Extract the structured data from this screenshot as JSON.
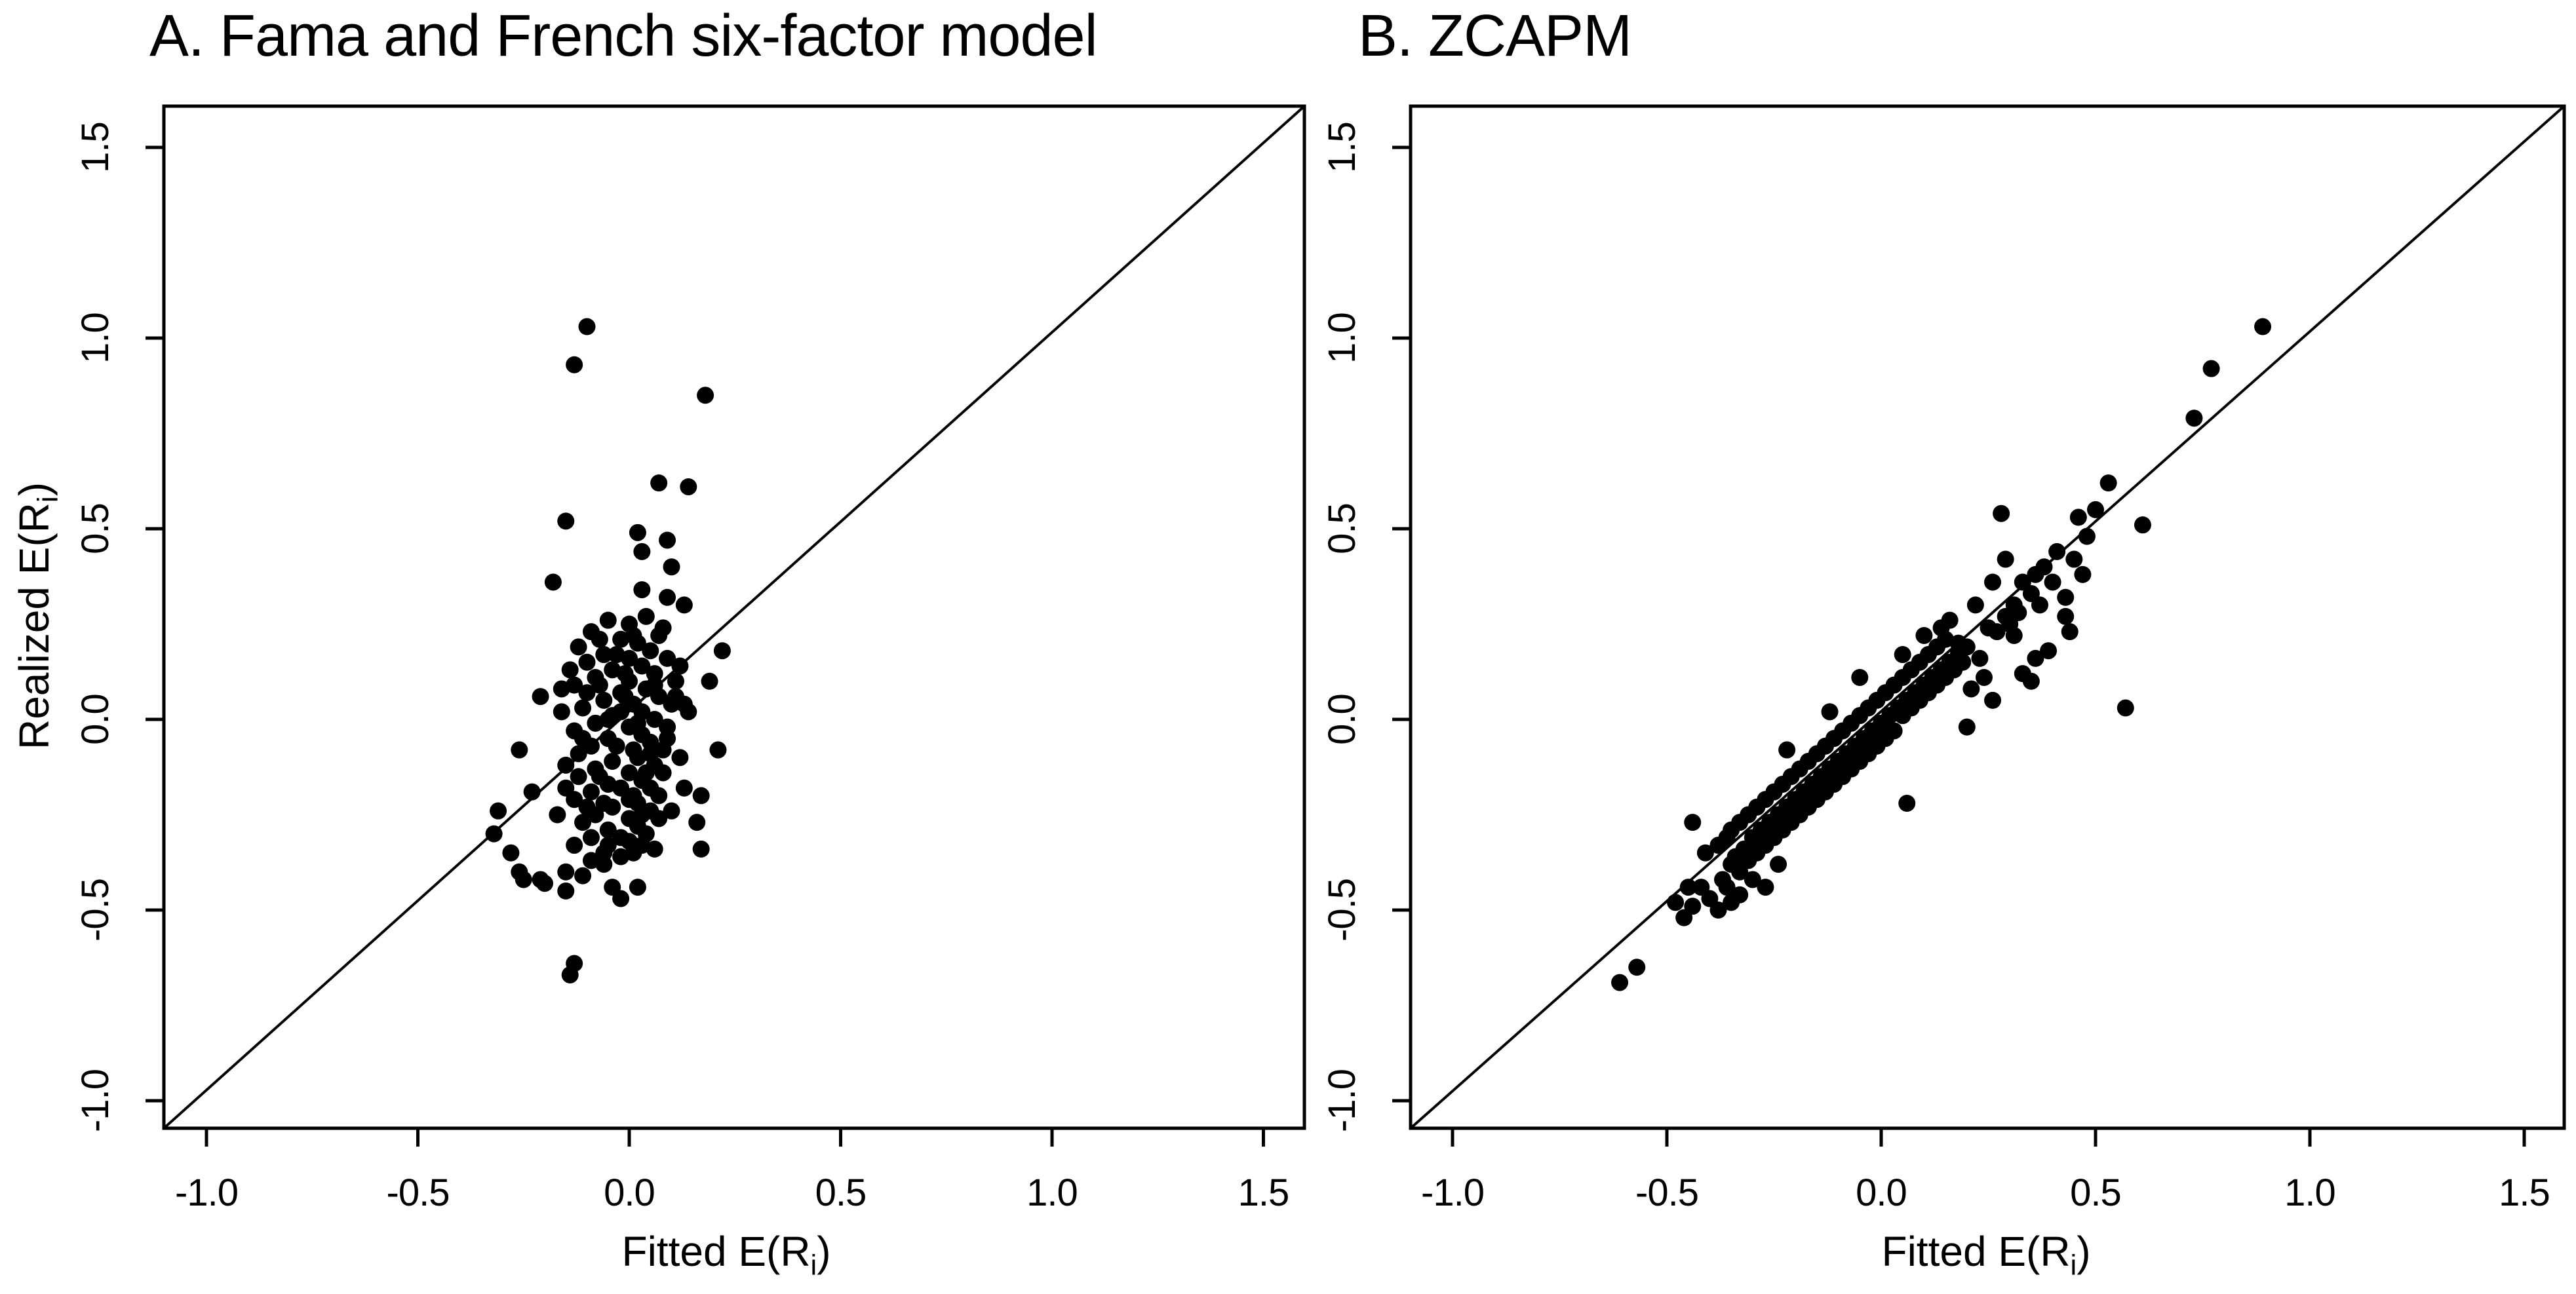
{
  "figure": {
    "background": "#ffffff",
    "ink_color": "#000000"
  },
  "panels": [
    {
      "id": "A",
      "title": "A. Fama and French six-factor model",
      "x_axis": {
        "label_pre": "Fitted E(R",
        "label_sub": "i",
        "label_post": ")"
      },
      "y_axis": {
        "label_pre": "Realized E(R",
        "label_sub": "i",
        "label_post": ")"
      }
    },
    {
      "id": "B",
      "title": "B. ZCAPM",
      "x_axis": {
        "label_pre": "Fitted E(R",
        "label_sub": "i",
        "label_post": ")"
      },
      "y_axis": {
        "label_pre": "",
        "label_sub": "",
        "label_post": ""
      }
    }
  ],
  "chart_data": [
    {
      "type": "scatter",
      "panel": "A",
      "title": "A. Fama and French six-factor model",
      "xlabel": "Fitted E(R_i)",
      "ylabel": "Realized E(R_i)",
      "xlim": [
        -1.1,
        1.6
      ],
      "ylim": [
        -1.07,
        1.61
      ],
      "grid": false,
      "legend": "none",
      "x_ticks": [
        -1.0,
        -0.5,
        0.0,
        0.5,
        1.0,
        1.5
      ],
      "y_ticks": [
        -1.0,
        -0.5,
        0.0,
        0.5,
        1.0,
        1.5
      ],
      "x_tick_labels": [
        "-1.0",
        "-0.5",
        "0.0",
        "0.5",
        "1.0",
        "1.5"
      ],
      "y_tick_labels": [
        "-1.0",
        "-0.5",
        "0.0",
        "0.5",
        "1.0",
        "1.5"
      ],
      "reference_line": {
        "type": "identity",
        "equation": "y = x"
      },
      "marker": {
        "shape": "circle",
        "color": "#000000",
        "radius_px": 13
      },
      "points": [
        [
          -0.1,
          1.03
        ],
        [
          -0.13,
          0.93
        ],
        [
          0.18,
          0.85
        ],
        [
          0.07,
          0.62
        ],
        [
          0.14,
          0.61
        ],
        [
          -0.15,
          0.52
        ],
        [
          0.02,
          0.49
        ],
        [
          0.09,
          0.47
        ],
        [
          0.03,
          0.44
        ],
        [
          0.1,
          0.4
        ],
        [
          -0.18,
          0.36
        ],
        [
          0.03,
          0.34
        ],
        [
          0.09,
          0.32
        ],
        [
          0.13,
          0.3
        ],
        [
          -0.21,
          0.06
        ],
        [
          -0.26,
          -0.08
        ],
        [
          -0.23,
          -0.19
        ],
        [
          -0.31,
          -0.24
        ],
        [
          -0.32,
          -0.3
        ],
        [
          -0.28,
          -0.35
        ],
        [
          -0.25,
          -0.42
        ],
        [
          -0.2,
          -0.43
        ],
        [
          -0.13,
          -0.64
        ],
        [
          -0.14,
          -0.67
        ],
        [
          -0.26,
          -0.4
        ],
        [
          -0.21,
          -0.42
        ],
        [
          -0.15,
          -0.4
        ],
        [
          -0.11,
          -0.41
        ],
        [
          -0.06,
          -0.38
        ],
        [
          -0.15,
          -0.45
        ],
        [
          0.06,
          -0.34
        ],
        [
          0.17,
          -0.34
        ],
        [
          -0.02,
          -0.47
        ],
        [
          0.02,
          -0.44
        ],
        [
          0.13,
          0.04
        ],
        [
          0.17,
          -0.2
        ],
        [
          0.21,
          -0.08
        ],
        [
          0.19,
          0.1
        ],
        [
          0.22,
          0.18
        ],
        [
          0.16,
          -0.27
        ],
        [
          -0.05,
          0.26
        ],
        [
          0.0,
          0.25
        ],
        [
          0.04,
          0.27
        ],
        [
          -0.09,
          0.23
        ],
        [
          0.07,
          0.22
        ],
        [
          -0.02,
          0.21
        ],
        [
          0.02,
          0.2
        ],
        [
          -0.12,
          0.19
        ],
        [
          0.05,
          0.18
        ],
        [
          -0.06,
          0.17
        ],
        [
          0.0,
          0.16
        ],
        [
          0.09,
          0.16
        ],
        [
          -0.1,
          0.15
        ],
        [
          0.03,
          0.14
        ],
        [
          -0.04,
          0.13
        ],
        [
          0.06,
          0.12
        ],
        [
          -0.08,
          0.11
        ],
        [
          0.0,
          0.1
        ],
        [
          0.11,
          0.1
        ],
        [
          -0.13,
          0.09
        ],
        [
          0.04,
          0.08
        ],
        [
          -0.02,
          0.07
        ],
        [
          0.07,
          0.06
        ],
        [
          -0.06,
          0.05
        ],
        [
          0.01,
          0.04
        ],
        [
          0.1,
          0.04
        ],
        [
          -0.11,
          0.03
        ],
        [
          0.03,
          0.02
        ],
        [
          -0.04,
          0.01
        ],
        [
          0.06,
          0.0
        ],
        [
          -0.08,
          -0.01
        ],
        [
          0.0,
          -0.02
        ],
        [
          0.09,
          -0.02
        ],
        [
          -0.13,
          -0.03
        ],
        [
          0.03,
          -0.04
        ],
        [
          -0.05,
          -0.05
        ],
        [
          0.05,
          -0.06
        ],
        [
          -0.09,
          -0.07
        ],
        [
          0.01,
          -0.08
        ],
        [
          0.08,
          -0.08
        ],
        [
          -0.12,
          -0.09
        ],
        [
          0.02,
          -0.1
        ],
        [
          -0.04,
          -0.11
        ],
        [
          0.06,
          -0.12
        ],
        [
          -0.08,
          -0.13
        ],
        [
          0.0,
          -0.14
        ],
        [
          0.08,
          -0.14
        ],
        [
          -0.12,
          -0.15
        ],
        [
          0.03,
          -0.16
        ],
        [
          -0.05,
          -0.17
        ],
        [
          0.05,
          -0.18
        ],
        [
          -0.09,
          -0.19
        ],
        [
          0.01,
          -0.2
        ],
        [
          0.07,
          -0.2
        ],
        [
          -0.13,
          -0.21
        ],
        [
          0.02,
          -0.22
        ],
        [
          -0.04,
          -0.23
        ],
        [
          0.05,
          -0.24
        ],
        [
          -0.08,
          -0.25
        ],
        [
          0.0,
          -0.26
        ],
        [
          0.07,
          -0.26
        ],
        [
          -0.11,
          -0.27
        ],
        [
          0.02,
          -0.28
        ],
        [
          -0.05,
          -0.29
        ],
        [
          0.04,
          -0.3
        ],
        [
          -0.09,
          -0.31
        ],
        [
          0.0,
          -0.32
        ],
        [
          -0.13,
          -0.33
        ],
        [
          0.03,
          -0.33
        ],
        [
          -0.06,
          -0.35
        ],
        [
          -0.02,
          -0.36
        ],
        [
          -0.16,
          0.02
        ],
        [
          -0.15,
          -0.12
        ],
        [
          -0.17,
          -0.25
        ],
        [
          -0.1,
          0.07
        ],
        [
          -0.07,
          0.09
        ],
        [
          0.12,
          0.14
        ],
        [
          0.14,
          0.02
        ],
        [
          0.12,
          -0.1
        ],
        [
          0.1,
          -0.24
        ],
        [
          0.13,
          -0.18
        ],
        [
          -0.01,
          0.12
        ],
        [
          -0.03,
          0.17
        ],
        [
          0.01,
          0.22
        ],
        [
          0.08,
          0.24
        ],
        [
          -0.07,
          0.21
        ],
        [
          -0.14,
          0.13
        ],
        [
          -0.16,
          0.08
        ],
        [
          -0.11,
          -0.05
        ],
        [
          -0.15,
          -0.18
        ],
        [
          -0.06,
          -0.22
        ],
        [
          -0.02,
          -0.18
        ],
        [
          0.04,
          -0.14
        ],
        [
          0.09,
          -0.05
        ],
        [
          0.11,
          0.06
        ],
        [
          0.06,
          0.09
        ],
        [
          -0.01,
          0.06
        ],
        [
          -0.05,
          0.0
        ],
        [
          0.02,
          -0.01
        ],
        [
          -0.03,
          -0.07
        ],
        [
          0.05,
          -0.09
        ],
        [
          -0.07,
          -0.15
        ],
        [
          0.0,
          -0.21
        ],
        [
          -0.1,
          -0.23
        ],
        [
          0.03,
          -0.25
        ],
        [
          -0.02,
          -0.31
        ],
        [
          -0.05,
          -0.33
        ],
        [
          0.01,
          -0.35
        ],
        [
          -0.09,
          -0.37
        ],
        [
          -0.04,
          -0.44
        ],
        [
          -0.02,
          0.02
        ]
      ]
    },
    {
      "type": "scatter",
      "panel": "B",
      "title": "B. ZCAPM",
      "xlabel": "Fitted E(R_i)",
      "ylabel": "Realized E(R_i)",
      "xlim": [
        -1.1,
        1.6
      ],
      "ylim": [
        -1.07,
        1.61
      ],
      "grid": false,
      "legend": "none",
      "x_ticks": [
        -1.0,
        -0.5,
        0.0,
        0.5,
        1.0,
        1.5
      ],
      "y_ticks": [
        -1.0,
        -0.5,
        0.0,
        0.5,
        1.0,
        1.5
      ],
      "x_tick_labels": [
        "-1.0",
        "-0.5",
        "0.0",
        "0.5",
        "1.0",
        "1.5"
      ],
      "y_tick_labels": [
        "-1.0",
        "-0.5",
        "0.0",
        "0.5",
        "1.0",
        "1.5"
      ],
      "reference_line": {
        "type": "identity",
        "equation": "y = x"
      },
      "marker": {
        "shape": "circle",
        "color": "#000000",
        "radius_px": 13
      },
      "points": [
        [
          0.89,
          1.03
        ],
        [
          0.77,
          0.92
        ],
        [
          0.73,
          0.79
        ],
        [
          0.61,
          0.51
        ],
        [
          0.57,
          0.03
        ],
        [
          0.48,
          0.48
        ],
        [
          0.47,
          0.38
        ],
        [
          0.43,
          0.32
        ],
        [
          0.43,
          0.27
        ],
        [
          0.44,
          0.23
        ],
        [
          0.29,
          0.42
        ],
        [
          0.06,
          -0.22
        ],
        [
          -0.44,
          -0.27
        ],
        [
          -0.61,
          -0.69
        ],
        [
          -0.57,
          -0.65
        ],
        [
          0.39,
          0.18
        ],
        [
          0.36,
          0.16
        ],
        [
          0.33,
          0.12
        ],
        [
          0.35,
          0.1
        ],
        [
          0.31,
          0.22
        ],
        [
          0.37,
          0.3
        ],
        [
          0.4,
          0.36
        ],
        [
          0.26,
          0.36
        ],
        [
          0.22,
          0.3
        ],
        [
          0.25,
          0.24
        ],
        [
          0.28,
          0.54
        ],
        [
          0.5,
          0.55
        ],
        [
          0.53,
          0.62
        ],
        [
          0.24,
          0.11
        ],
        [
          0.21,
          0.08
        ],
        [
          0.26,
          0.05
        ],
        [
          0.2,
          -0.02
        ],
        [
          0.23,
          0.16
        ],
        [
          0.18,
          0.2
        ],
        [
          0.16,
          0.26
        ],
        [
          0.3,
          0.25
        ],
        [
          0.32,
          0.28
        ],
        [
          -0.38,
          -0.33
        ],
        [
          -0.37,
          -0.42
        ],
        [
          -0.36,
          -0.31
        ],
        [
          -0.35,
          -0.38
        ],
        [
          -0.35,
          -0.29
        ],
        [
          -0.34,
          -0.36
        ],
        [
          -0.33,
          -0.27
        ],
        [
          -0.33,
          -0.4
        ],
        [
          -0.32,
          -0.34
        ],
        [
          -0.31,
          -0.25
        ],
        [
          -0.31,
          -0.37
        ],
        [
          -0.3,
          -0.31
        ],
        [
          -0.29,
          -0.23
        ],
        [
          -0.29,
          -0.35
        ],
        [
          -0.28,
          -0.29
        ],
        [
          -0.27,
          -0.21
        ],
        [
          -0.27,
          -0.33
        ],
        [
          -0.26,
          -0.27
        ],
        [
          -0.25,
          -0.19
        ],
        [
          -0.25,
          -0.31
        ],
        [
          -0.24,
          -0.25
        ],
        [
          -0.23,
          -0.17
        ],
        [
          -0.23,
          -0.29
        ],
        [
          -0.22,
          -0.23
        ],
        [
          -0.21,
          -0.15
        ],
        [
          -0.21,
          -0.27
        ],
        [
          -0.2,
          -0.21
        ],
        [
          -0.19,
          -0.13
        ],
        [
          -0.19,
          -0.25
        ],
        [
          -0.18,
          -0.19
        ],
        [
          -0.17,
          -0.11
        ],
        [
          -0.17,
          -0.23
        ],
        [
          -0.16,
          -0.17
        ],
        [
          -0.15,
          -0.09
        ],
        [
          -0.15,
          -0.21
        ],
        [
          -0.14,
          -0.15
        ],
        [
          -0.13,
          -0.07
        ],
        [
          -0.13,
          -0.19
        ],
        [
          -0.12,
          -0.13
        ],
        [
          -0.11,
          -0.05
        ],
        [
          -0.11,
          -0.17
        ],
        [
          -0.1,
          -0.11
        ],
        [
          -0.09,
          -0.03
        ],
        [
          -0.09,
          -0.15
        ],
        [
          -0.08,
          -0.09
        ],
        [
          -0.07,
          -0.01
        ],
        [
          -0.07,
          -0.13
        ],
        [
          -0.06,
          -0.07
        ],
        [
          -0.05,
          0.01
        ],
        [
          -0.05,
          -0.11
        ],
        [
          -0.04,
          -0.05
        ],
        [
          -0.03,
          0.03
        ],
        [
          -0.03,
          -0.09
        ],
        [
          -0.02,
          -0.03
        ],
        [
          -0.01,
          0.05
        ],
        [
          -0.01,
          -0.07
        ],
        [
          0.0,
          -0.01
        ],
        [
          0.01,
          0.07
        ],
        [
          0.01,
          -0.05
        ],
        [
          0.02,
          0.01
        ],
        [
          0.03,
          0.09
        ],
        [
          0.03,
          -0.03
        ],
        [
          0.04,
          0.03
        ],
        [
          0.05,
          0.11
        ],
        [
          0.05,
          0.01
        ],
        [
          0.06,
          0.05
        ],
        [
          0.07,
          0.13
        ],
        [
          0.07,
          0.03
        ],
        [
          0.08,
          0.07
        ],
        [
          0.09,
          0.15
        ],
        [
          0.09,
          0.05
        ],
        [
          0.1,
          0.09
        ],
        [
          0.11,
          0.17
        ],
        [
          0.11,
          0.07
        ],
        [
          0.12,
          0.11
        ],
        [
          0.13,
          0.19
        ],
        [
          0.13,
          0.09
        ],
        [
          0.14,
          0.13
        ],
        [
          0.15,
          0.21
        ],
        [
          0.15,
          0.11
        ],
        [
          0.16,
          0.15
        ],
        [
          0.17,
          0.13
        ],
        [
          0.18,
          0.17
        ],
        [
          0.19,
          0.15
        ],
        [
          0.2,
          0.19
        ],
        [
          -0.41,
          -0.35
        ],
        [
          -0.42,
          -0.44
        ],
        [
          -0.45,
          -0.44
        ],
        [
          -0.46,
          -0.52
        ],
        [
          -0.4,
          -0.47
        ],
        [
          -0.36,
          -0.44
        ],
        [
          -0.33,
          -0.46
        ],
        [
          -0.3,
          -0.42
        ],
        [
          -0.27,
          -0.44
        ],
        [
          -0.24,
          -0.38
        ],
        [
          -0.35,
          -0.48
        ],
        [
          -0.38,
          -0.5
        ],
        [
          -0.44,
          -0.49
        ],
        [
          -0.48,
          -0.48
        ],
        [
          0.1,
          0.22
        ],
        [
          0.05,
          0.17
        ],
        [
          -0.05,
          0.11
        ],
        [
          -0.12,
          0.02
        ],
        [
          -0.22,
          -0.08
        ],
        [
          0.14,
          0.24
        ],
        [
          0.35,
          0.33
        ],
        [
          0.38,
          0.4
        ],
        [
          0.41,
          0.44
        ],
        [
          0.45,
          0.42
        ],
        [
          0.36,
          0.38
        ],
        [
          0.33,
          0.36
        ],
        [
          0.31,
          0.3
        ],
        [
          0.29,
          0.27
        ],
        [
          0.27,
          0.23
        ],
        [
          0.46,
          0.53
        ]
      ]
    }
  ]
}
